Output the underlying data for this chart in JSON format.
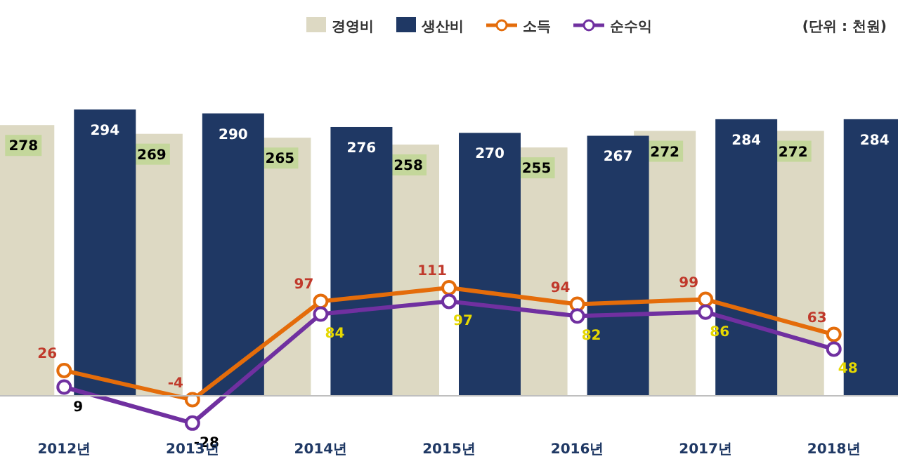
{
  "chart_data": {
    "type": "bar",
    "categories": [
      "2012년",
      "2013년",
      "2014년",
      "2015년",
      "2016년",
      "2017년",
      "2018년"
    ],
    "series": [
      {
        "name": "경영비",
        "color": "#ddd9c3",
        "values": [
          278,
          269,
          265,
          258,
          255,
          272,
          272
        ]
      },
      {
        "name": "생산비",
        "color": "#1f3864",
        "values": [
          294,
          290,
          276,
          270,
          267,
          284,
          284
        ]
      },
      {
        "name": "소득",
        "type": "line",
        "color": "#e46c0a",
        "values": [
          26,
          -4,
          97,
          111,
          94,
          99,
          63
        ]
      },
      {
        "name": "순수익",
        "type": "line",
        "color": "#7030a0",
        "values": [
          9,
          -28,
          84,
          97,
          82,
          86,
          48
        ]
      }
    ],
    "data_labels": true,
    "legend": "top",
    "marker": "circle",
    "annotations": [
      "(단위 : 천원)"
    ]
  }
}
